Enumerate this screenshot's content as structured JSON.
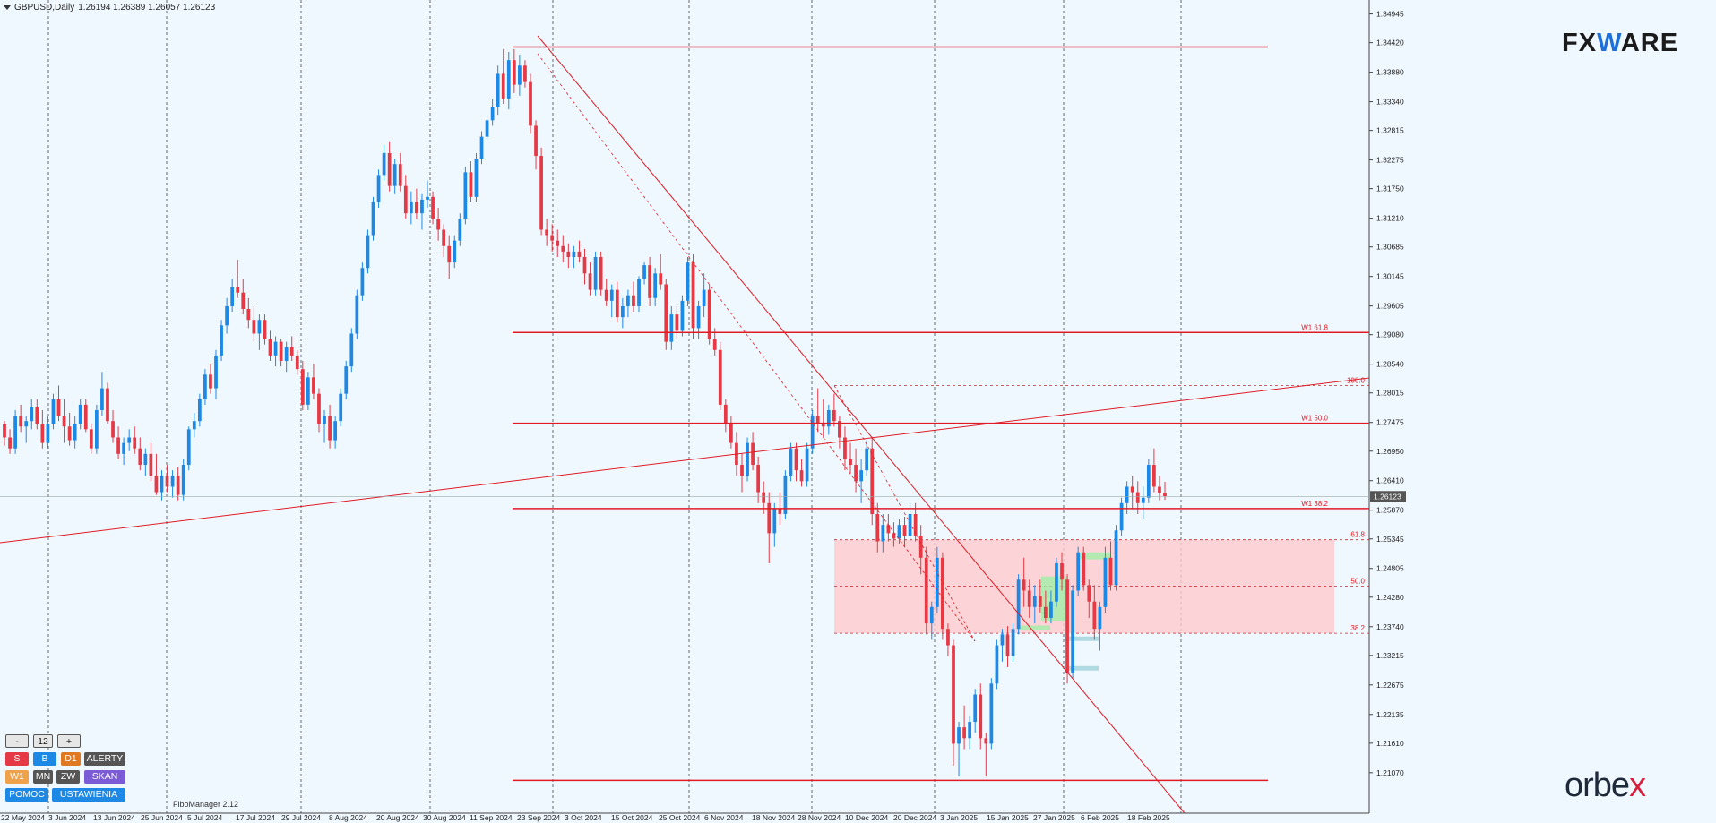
{
  "header": {
    "symbol": "GBPUSD,Daily",
    "ohlc": "1.26194 1.26389 1.26057 1.26123"
  },
  "logos": {
    "fx_prefix": "FX",
    "fx_mid": "W",
    "fx_suffix": "ARE",
    "orbex_main": "orbe",
    "orbex_x": "x"
  },
  "fibo_label": "FiboManager 2.12",
  "current_price_label": "1.26123",
  "chart_data": {
    "type": "candlestick",
    "y_range": [
      1.2033,
      1.352
    ],
    "y_ticks": [
      "1.34945",
      "1.34420",
      "1.33880",
      "1.33340",
      "1.32815",
      "1.32275",
      "1.31750",
      "1.31210",
      "1.30685",
      "1.30145",
      "1.29605",
      "1.29080",
      "1.28540",
      "1.28015",
      "1.27475",
      "1.26950",
      "1.26410",
      "1.25870",
      "1.25345",
      "1.24805",
      "1.24280",
      "1.23740",
      "1.23215",
      "1.22675",
      "1.22135",
      "1.21610",
      "1.21070"
    ],
    "x_labels": [
      "22 May 2024",
      "3 Jun 2024",
      "13 Jun 2024",
      "25 Jun 2024",
      "5 Jul 2024",
      "17 Jul 2024",
      "29 Jul 2024",
      "8 Aug 2024",
      "20 Aug 2024",
      "30 Aug 2024",
      "11 Sep 2024",
      "23 Sep 2024",
      "3 Oct 2024",
      "15 Oct 2024",
      "25 Oct 2024",
      "6 Nov 2024",
      "18 Nov 2024",
      "28 Nov 2024",
      "10 Dec 2024",
      "20 Dec 2024",
      "3 Jan 2025",
      "15 Jan 2025",
      "27 Jan 2025",
      "6 Feb 2025",
      "18 Feb 2025"
    ],
    "levels": [
      {
        "price": 1.2912,
        "label": "W1 61.8"
      },
      {
        "price": 1.2746,
        "label": "W1 50.0"
      },
      {
        "price": 1.259,
        "label": "W1 38.2"
      }
    ],
    "top_line": 1.3434,
    "bottom_line": 1.2093,
    "fib_box": {
      "top": 1.2533,
      "bottom": 1.2362,
      "labels": [
        {
          "price": 1.2533,
          "label": "61.8"
        },
        {
          "price": 1.2448,
          "label": "50.0"
        },
        {
          "price": 1.2362,
          "label": "38.2"
        },
        {
          "price": 1.2815,
          "label": "100.0"
        }
      ]
    },
    "candles": [
      [
        1.2745,
        1.275,
        1.2705,
        1.272
      ],
      [
        1.272,
        1.2735,
        1.269,
        1.27
      ],
      [
        1.27,
        1.277,
        1.269,
        1.276
      ],
      [
        1.276,
        1.278,
        1.273,
        1.274
      ],
      [
        1.274,
        1.276,
        1.271,
        1.275
      ],
      [
        1.275,
        1.279,
        1.2735,
        1.2775
      ],
      [
        1.2775,
        1.279,
        1.2735,
        1.2745
      ],
      [
        1.2745,
        1.277,
        1.27,
        1.271
      ],
      [
        1.271,
        1.276,
        1.27,
        1.2745
      ],
      [
        1.2745,
        1.28,
        1.2735,
        1.279
      ],
      [
        1.279,
        1.2815,
        1.275,
        1.276
      ],
      [
        1.276,
        1.279,
        1.271,
        1.274
      ],
      [
        1.274,
        1.2765,
        1.2705,
        1.2715
      ],
      [
        1.2715,
        1.276,
        1.27,
        1.2745
      ],
      [
        1.2745,
        1.279,
        1.2735,
        1.278
      ],
      [
        1.278,
        1.279,
        1.273,
        1.2735
      ],
      [
        1.2735,
        1.2745,
        1.269,
        1.27
      ],
      [
        1.27,
        1.278,
        1.269,
        1.277
      ],
      [
        1.277,
        1.284,
        1.276,
        1.281
      ],
      [
        1.281,
        1.282,
        1.2745,
        1.275
      ],
      [
        1.275,
        1.277,
        1.271,
        1.272
      ],
      [
        1.272,
        1.274,
        1.268,
        1.269
      ],
      [
        1.269,
        1.272,
        1.267,
        1.271
      ],
      [
        1.271,
        1.2735,
        1.2695,
        1.272
      ],
      [
        1.272,
        1.274,
        1.269,
        1.27
      ],
      [
        1.27,
        1.272,
        1.266,
        1.267
      ],
      [
        1.267,
        1.27,
        1.265,
        1.269
      ],
      [
        1.269,
        1.271,
        1.264,
        1.265
      ],
      [
        1.265,
        1.269,
        1.2615,
        1.262
      ],
      [
        1.262,
        1.266,
        1.2605,
        1.265
      ],
      [
        1.265,
        1.267,
        1.262,
        1.263
      ],
      [
        1.263,
        1.266,
        1.261,
        1.265
      ],
      [
        1.265,
        1.2665,
        1.2605,
        1.2615
      ],
      [
        1.2615,
        1.268,
        1.2605,
        1.267
      ],
      [
        1.267,
        1.274,
        1.266,
        1.2735
      ],
      [
        1.2735,
        1.2765,
        1.272,
        1.275
      ],
      [
        1.275,
        1.28,
        1.274,
        1.279
      ],
      [
        1.279,
        1.2845,
        1.278,
        1.2835
      ],
      [
        1.2835,
        1.2855,
        1.28,
        1.281
      ],
      [
        1.281,
        1.288,
        1.279,
        1.287
      ],
      [
        1.287,
        1.2935,
        1.286,
        1.2925
      ],
      [
        1.2925,
        1.2975,
        1.291,
        1.296
      ],
      [
        1.296,
        1.301,
        1.295,
        1.2995
      ],
      [
        1.2995,
        1.3045,
        1.2975,
        1.2985
      ],
      [
        1.2985,
        1.301,
        1.2945,
        1.2955
      ],
      [
        1.2955,
        1.2975,
        1.292,
        1.2935
      ],
      [
        1.2935,
        1.296,
        1.2895,
        1.291
      ],
      [
        1.291,
        1.2945,
        1.288,
        1.2935
      ],
      [
        1.2935,
        1.2945,
        1.289,
        1.29
      ],
      [
        1.29,
        1.2915,
        1.286,
        1.287
      ],
      [
        1.287,
        1.2905,
        1.285,
        1.2895
      ],
      [
        1.2895,
        1.29,
        1.285,
        1.286
      ],
      [
        1.286,
        1.2895,
        1.284,
        1.2885
      ],
      [
        1.2885,
        1.2905,
        1.286,
        1.287
      ],
      [
        1.287,
        1.288,
        1.2835,
        1.2845
      ],
      [
        1.2845,
        1.286,
        1.277,
        1.278
      ],
      [
        1.278,
        1.284,
        1.277,
        1.283
      ],
      [
        1.283,
        1.2855,
        1.279,
        1.28
      ],
      [
        1.28,
        1.281,
        1.273,
        1.2745
      ],
      [
        1.2745,
        1.277,
        1.271,
        1.276
      ],
      [
        1.276,
        1.278,
        1.27,
        1.2715
      ],
      [
        1.2715,
        1.276,
        1.27,
        1.275
      ],
      [
        1.275,
        1.281,
        1.274,
        1.28
      ],
      [
        1.28,
        1.286,
        1.279,
        1.285
      ],
      [
        1.285,
        1.292,
        1.284,
        1.291
      ],
      [
        1.291,
        1.299,
        1.29,
        1.298
      ],
      [
        1.298,
        1.304,
        1.297,
        1.303
      ],
      [
        1.303,
        1.31,
        1.302,
        1.309
      ],
      [
        1.309,
        1.316,
        1.308,
        1.315
      ],
      [
        1.315,
        1.321,
        1.314,
        1.32
      ],
      [
        1.32,
        1.3255,
        1.319,
        1.324
      ],
      [
        1.324,
        1.326,
        1.317,
        1.318
      ],
      [
        1.318,
        1.323,
        1.3165,
        1.322
      ],
      [
        1.322,
        1.324,
        1.317,
        1.318
      ],
      [
        1.318,
        1.32,
        1.312,
        1.313
      ],
      [
        1.313,
        1.317,
        1.311,
        1.315
      ],
      [
        1.315,
        1.3175,
        1.312,
        1.313
      ],
      [
        1.313,
        1.3165,
        1.31,
        1.3155
      ],
      [
        1.3155,
        1.319,
        1.314,
        1.316
      ],
      [
        1.316,
        1.317,
        1.311,
        1.312
      ],
      [
        1.312,
        1.314,
        1.308,
        1.31
      ],
      [
        1.31,
        1.311,
        1.305,
        1.307
      ],
      [
        1.307,
        1.309,
        1.301,
        1.304
      ],
      [
        1.304,
        1.309,
        1.303,
        1.308
      ],
      [
        1.308,
        1.313,
        1.307,
        1.312
      ],
      [
        1.312,
        1.3215,
        1.311,
        1.3205
      ],
      [
        1.3205,
        1.3225,
        1.315,
        1.316
      ],
      [
        1.316,
        1.324,
        1.315,
        1.323
      ],
      [
        1.323,
        1.328,
        1.322,
        1.327
      ],
      [
        1.327,
        1.331,
        1.326,
        1.33
      ],
      [
        1.33,
        1.334,
        1.329,
        1.3325
      ],
      [
        1.3325,
        1.34,
        1.331,
        1.3385
      ],
      [
        1.3385,
        1.343,
        1.333,
        1.334
      ],
      [
        1.334,
        1.3425,
        1.332,
        1.341
      ],
      [
        1.341,
        1.343,
        1.335,
        1.3365
      ],
      [
        1.3365,
        1.342,
        1.3345,
        1.34
      ],
      [
        1.34,
        1.341,
        1.336,
        1.337
      ],
      [
        1.337,
        1.3385,
        1.3275,
        1.329
      ],
      [
        1.329,
        1.33,
        1.321,
        1.3235
      ],
      [
        1.3235,
        1.325,
        1.309,
        1.31
      ],
      [
        1.31,
        1.312,
        1.307,
        1.309
      ],
      [
        1.309,
        1.311,
        1.306,
        1.308
      ],
      [
        1.308,
        1.31,
        1.305,
        1.307
      ],
      [
        1.307,
        1.309,
        1.304,
        1.306
      ],
      [
        1.306,
        1.3075,
        1.303,
        1.305
      ],
      [
        1.305,
        1.307,
        1.303,
        1.306
      ],
      [
        1.306,
        1.308,
        1.304,
        1.305
      ],
      [
        1.305,
        1.3065,
        1.3,
        1.302
      ],
      [
        1.302,
        1.304,
        1.298,
        1.299
      ],
      [
        1.299,
        1.306,
        1.298,
        1.305
      ],
      [
        1.305,
        1.306,
        1.298,
        1.299
      ],
      [
        1.299,
        1.301,
        1.296,
        1.297
      ],
      [
        1.297,
        1.3,
        1.294,
        1.299
      ],
      [
        1.299,
        1.3005,
        1.293,
        1.294
      ],
      [
        1.294,
        1.2975,
        1.292,
        1.296
      ],
      [
        1.296,
        1.299,
        1.294,
        1.298
      ],
      [
        1.298,
        1.3005,
        1.295,
        1.296
      ],
      [
        1.296,
        1.3015,
        1.295,
        1.301
      ],
      [
        1.301,
        1.304,
        1.3,
        1.3035
      ],
      [
        1.3035,
        1.305,
        1.296,
        1.2975
      ],
      [
        1.2975,
        1.303,
        1.296,
        1.302
      ],
      [
        1.302,
        1.3055,
        1.299,
        1.3
      ],
      [
        1.3,
        1.301,
        1.288,
        1.2895
      ],
      [
        1.2895,
        1.296,
        1.288,
        1.2945
      ],
      [
        1.2945,
        1.296,
        1.29,
        1.2915
      ],
      [
        1.2915,
        1.298,
        1.2905,
        1.297
      ],
      [
        1.297,
        1.305,
        1.296,
        1.304
      ],
      [
        1.304,
        1.3055,
        1.29,
        1.292
      ],
      [
        1.292,
        1.297,
        1.29,
        1.296
      ],
      [
        1.296,
        1.302,
        1.294,
        1.299
      ],
      [
        1.299,
        1.3,
        1.289,
        1.29
      ],
      [
        1.29,
        1.292,
        1.287,
        1.288
      ],
      [
        1.288,
        1.2895,
        1.277,
        1.278
      ],
      [
        1.278,
        1.279,
        1.273,
        1.2745
      ],
      [
        1.2745,
        1.276,
        1.27,
        1.271
      ],
      [
        1.271,
        1.273,
        1.265,
        1.267
      ],
      [
        1.267,
        1.269,
        1.262,
        1.265
      ],
      [
        1.265,
        1.272,
        1.264,
        1.271
      ],
      [
        1.271,
        1.273,
        1.266,
        1.267
      ],
      [
        1.267,
        1.2685,
        1.26,
        1.262
      ],
      [
        1.262,
        1.264,
        1.258,
        1.26
      ],
      [
        1.26,
        1.262,
        1.249,
        1.2545
      ],
      [
        1.2545,
        1.26,
        1.252,
        1.259
      ],
      [
        1.259,
        1.262,
        1.256,
        1.258
      ],
      [
        1.258,
        1.266,
        1.257,
        1.265
      ],
      [
        1.265,
        1.271,
        1.264,
        1.27
      ],
      [
        1.27,
        1.271,
        1.264,
        1.266
      ],
      [
        1.266,
        1.268,
        1.263,
        1.264
      ],
      [
        1.264,
        1.271,
        1.263,
        1.27
      ],
      [
        1.27,
        1.277,
        1.269,
        1.276
      ],
      [
        1.276,
        1.281,
        1.273,
        1.2745
      ],
      [
        1.2745,
        1.279,
        1.272,
        1.274
      ],
      [
        1.274,
        1.278,
        1.2725,
        1.277
      ],
      [
        1.277,
        1.28,
        1.274,
        1.275
      ],
      [
        1.275,
        1.276,
        1.27,
        1.272
      ],
      [
        1.272,
        1.274,
        1.266,
        1.268
      ],
      [
        1.268,
        1.271,
        1.2655,
        1.267
      ],
      [
        1.267,
        1.27,
        1.262,
        1.264
      ],
      [
        1.264,
        1.268,
        1.26,
        1.266
      ],
      [
        1.266,
        1.2715,
        1.265,
        1.27
      ],
      [
        1.27,
        1.272,
        1.256,
        1.258
      ],
      [
        1.258,
        1.26,
        1.251,
        1.253
      ],
      [
        1.253,
        1.258,
        1.251,
        1.256
      ],
      [
        1.256,
        1.258,
        1.253,
        1.2545
      ],
      [
        1.2545,
        1.2565,
        1.252,
        1.2535
      ],
      [
        1.2535,
        1.257,
        1.2525,
        1.256
      ],
      [
        1.256,
        1.2575,
        1.252,
        1.254
      ],
      [
        1.254,
        1.26,
        1.253,
        1.258
      ],
      [
        1.258,
        1.26,
        1.253,
        1.254
      ],
      [
        1.254,
        1.256,
        1.247,
        1.25
      ],
      [
        1.25,
        1.252,
        1.236,
        1.238
      ],
      [
        1.238,
        1.242,
        1.235,
        1.241
      ],
      [
        1.241,
        1.252,
        1.24,
        1.25
      ],
      [
        1.25,
        1.251,
        1.235,
        1.237
      ],
      [
        1.237,
        1.238,
        1.232,
        1.234
      ],
      [
        1.234,
        1.235,
        1.212,
        1.216
      ],
      [
        1.216,
        1.22,
        1.21,
        1.219
      ],
      [
        1.219,
        1.223,
        1.215,
        1.217
      ],
      [
        1.217,
        1.221,
        1.215,
        1.22
      ],
      [
        1.22,
        1.226,
        1.218,
        1.225
      ],
      [
        1.225,
        1.227,
        1.215,
        1.217
      ],
      [
        1.217,
        1.218,
        1.21,
        1.216
      ],
      [
        1.216,
        1.228,
        1.215,
        1.227
      ],
      [
        1.227,
        1.235,
        1.226,
        1.234
      ],
      [
        1.234,
        1.237,
        1.231,
        1.236
      ],
      [
        1.236,
        1.2375,
        1.23,
        1.232
      ],
      [
        1.232,
        1.238,
        1.231,
        1.237
      ],
      [
        1.237,
        1.247,
        1.236,
        1.246
      ],
      [
        1.246,
        1.25,
        1.241,
        1.244
      ],
      [
        1.244,
        1.246,
        1.239,
        1.241
      ],
      [
        1.241,
        1.245,
        1.238,
        1.243
      ],
      [
        1.243,
        1.246,
        1.24,
        1.241
      ],
      [
        1.241,
        1.244,
        1.238,
        1.239
      ],
      [
        1.239,
        1.244,
        1.238,
        1.242
      ],
      [
        1.242,
        1.25,
        1.241,
        1.249
      ],
      [
        1.249,
        1.251,
        1.244,
        1.246
      ],
      [
        1.246,
        1.247,
        1.227,
        1.229
      ],
      [
        1.229,
        1.245,
        1.228,
        1.244
      ],
      [
        1.244,
        1.252,
        1.243,
        1.251
      ],
      [
        1.251,
        1.252,
        1.244,
        1.245
      ],
      [
        1.245,
        1.246,
        1.239,
        1.242
      ],
      [
        1.242,
        1.245,
        1.235,
        1.237
      ],
      [
        1.237,
        1.242,
        1.233,
        1.241
      ],
      [
        1.241,
        1.252,
        1.24,
        1.25
      ],
      [
        1.25,
        1.253,
        1.244,
        1.245
      ],
      [
        1.245,
        1.256,
        1.244,
        1.255
      ],
      [
        1.255,
        1.261,
        1.254,
        1.26
      ],
      [
        1.26,
        1.264,
        1.258,
        1.263
      ],
      [
        1.263,
        1.265,
        1.259,
        1.262
      ],
      [
        1.262,
        1.264,
        1.258,
        1.26
      ],
      [
        1.26,
        1.263,
        1.257,
        1.261
      ],
      [
        1.261,
        1.268,
        1.26,
        1.267
      ],
      [
        1.267,
        1.27,
        1.262,
        1.263
      ],
      [
        1.263,
        1.265,
        1.2605,
        1.2619
      ],
      [
        1.2619,
        1.2639,
        1.2606,
        1.2612
      ]
    ]
  },
  "panel": {
    "minus": "-",
    "num": "12",
    "plus": "+",
    "row1": [
      "S",
      "B",
      "D1",
      "ALERTY"
    ],
    "row2": [
      "W1",
      "MN",
      "ZW",
      "SKAN"
    ],
    "row3": [
      "POMOC",
      "USTAWIENIA"
    ]
  },
  "colors": {
    "bg": "#f0f8ff",
    "bull": "#1e88e5",
    "bear": "#e53946",
    "line": "#e01b24",
    "box": "#ffc9cc",
    "green": "#9ff0a8",
    "teal": "#a9d6de"
  }
}
